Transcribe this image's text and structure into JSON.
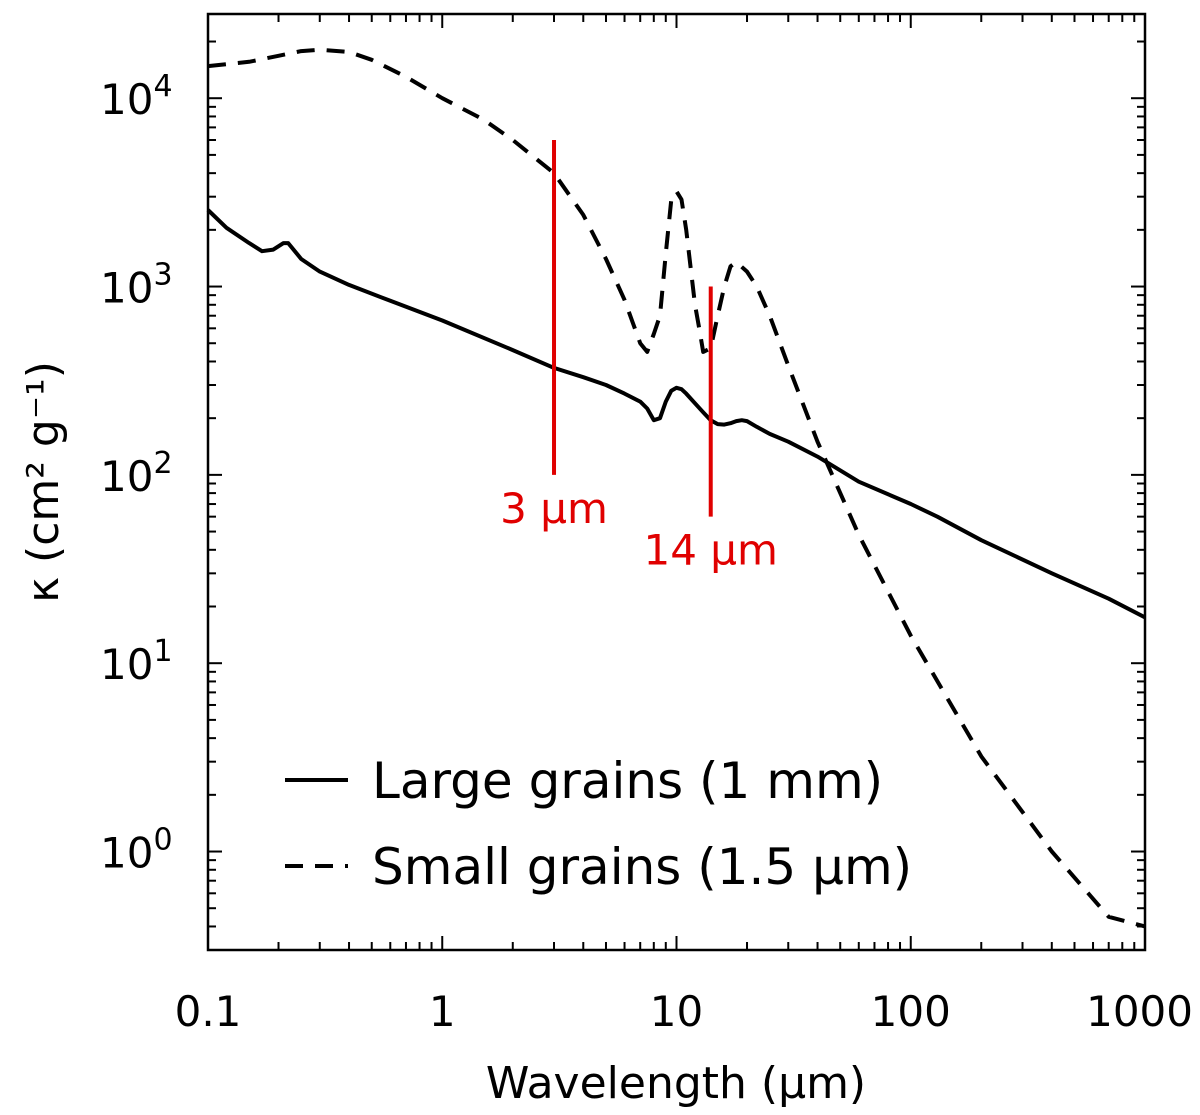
{
  "chart_data": {
    "type": "line",
    "title": "",
    "xlabel": "Wavelength (μm)",
    "ylabel": "κ (cm² g⁻¹)",
    "xscale": "log",
    "yscale": "log",
    "xlim": [
      0.1,
      1000
    ],
    "ylim": [
      0.3,
      28000
    ],
    "x_ticks": [
      {
        "value": 0.1,
        "label": "0.1"
      },
      {
        "value": 1,
        "label": "1"
      },
      {
        "value": 10,
        "label": "10"
      },
      {
        "value": 100,
        "label": "100"
      },
      {
        "value": 1000,
        "label": "1000"
      }
    ],
    "y_ticks": [
      {
        "value": 1,
        "base": "10",
        "exp": "0"
      },
      {
        "value": 10,
        "base": "10",
        "exp": "1"
      },
      {
        "value": 100,
        "base": "10",
        "exp": "2"
      },
      {
        "value": 1000,
        "base": "10",
        "exp": "3"
      },
      {
        "value": 10000,
        "base": "10",
        "exp": "4"
      }
    ],
    "legend_position": "bottom-left",
    "series": [
      {
        "name": "Large grains (1 mm)",
        "style": "solid",
        "color": "#000000",
        "x": [
          0.1,
          0.12,
          0.15,
          0.17,
          0.19,
          0.21,
          0.22,
          0.25,
          0.3,
          0.4,
          0.6,
          1,
          2,
          3,
          4,
          5,
          6,
          7,
          7.5,
          8,
          8.5,
          9,
          9.5,
          10,
          10.5,
          11,
          12,
          13,
          14,
          15,
          16,
          17,
          18,
          19,
          20,
          22,
          25,
          30,
          40,
          60,
          100,
          130,
          200,
          400,
          700,
          1000
        ],
        "y": [
          2550,
          2050,
          1700,
          1540,
          1570,
          1700,
          1700,
          1400,
          1200,
          1020,
          840,
          660,
          460,
          370,
          330,
          300,
          270,
          245,
          225,
          195,
          200,
          245,
          280,
          290,
          285,
          270,
          240,
          215,
          195,
          186,
          185,
          188,
          193,
          195,
          193,
          180,
          165,
          150,
          125,
          92,
          70,
          60,
          45,
          30,
          22,
          17.5
        ]
      },
      {
        "name": "Small grains (1.5 μm)",
        "style": "dashed",
        "color": "#000000",
        "x": [
          0.1,
          0.15,
          0.2,
          0.25,
          0.3,
          0.4,
          0.5,
          0.7,
          1,
          1.5,
          2,
          3,
          4,
          5,
          6,
          7,
          7.5,
          8,
          8.5,
          9,
          9.5,
          10,
          10.5,
          11,
          12,
          12.5,
          13,
          14,
          15,
          16,
          17,
          18,
          20,
          22,
          25,
          30,
          40,
          60,
          100,
          200,
          400,
          700,
          1000
        ],
        "y": [
          14800,
          15600,
          16800,
          17800,
          18100,
          17600,
          16000,
          13000,
          10000,
          7700,
          6000,
          4000,
          2400,
          1400,
          850,
          500,
          450,
          560,
          700,
          1500,
          2900,
          3200,
          2900,
          2000,
          800,
          600,
          450,
          470,
          700,
          1000,
          1280,
          1350,
          1200,
          1000,
          700,
          380,
          150,
          48,
          14,
          3.2,
          1.0,
          0.45,
          0.4
        ]
      }
    ],
    "markers": [
      {
        "x": 3,
        "y_bottom": 100,
        "y_top": 6000,
        "label": "3 μm",
        "color": "#e00000"
      },
      {
        "x": 14,
        "y_bottom": 60,
        "y_top": 1000,
        "label": "14 μm",
        "color": "#e00000"
      }
    ]
  }
}
